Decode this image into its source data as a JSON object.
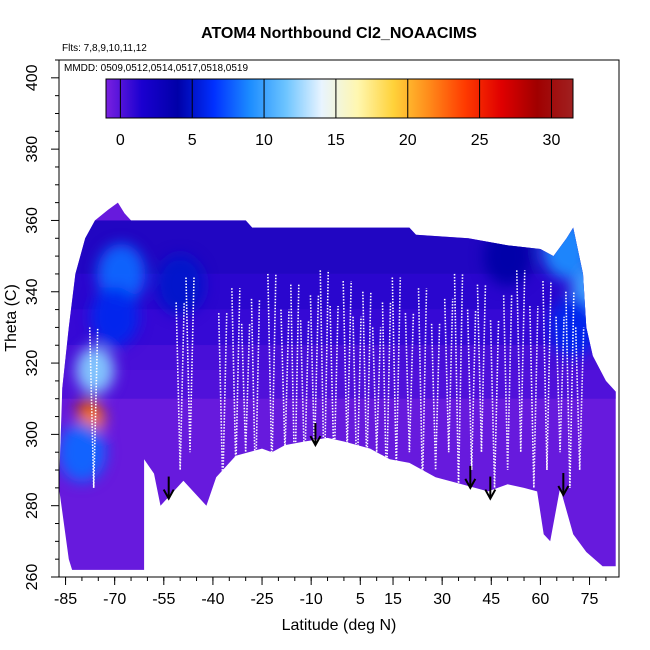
{
  "chart_data": {
    "type": "heatmap",
    "title": "ATOM4 Northbound Cl2_NOAACIMS",
    "annotations": [
      "Flts: 7,8,9,10,11,12",
      "MMDD: 0509,0512,0514,0517,0518,0519"
    ],
    "xlabel": "Latitude (deg N)",
    "ylabel": "Theta (C)",
    "xlim": [
      -87,
      84
    ],
    "ylim": [
      260,
      405
    ],
    "x_ticks": [
      -85,
      -70,
      -55,
      -40,
      -25,
      -10,
      5,
      15,
      30,
      45,
      60,
      75
    ],
    "y_ticks": [
      260,
      280,
      300,
      320,
      340,
      360,
      380,
      400
    ],
    "grid": false,
    "colorbar": {
      "range": [
        -1,
        31.5
      ],
      "ticks": [
        0,
        5,
        10,
        15,
        20,
        25,
        30
      ],
      "placement": "inside top",
      "colors": [
        "#7a20e0",
        "#1a00d0",
        "#0000a8",
        "#0030ff",
        "#1c8cff",
        "#6cc4ff",
        "#e8f4ff",
        "#fff7b0",
        "#ffd23a",
        "#ff8a1a",
        "#ff3a00",
        "#e00000",
        "#a00000",
        "#a02020"
      ]
    },
    "data_mask": {
      "top_theta": [
        [
          -87,
          285
        ],
        [
          -86,
          313
        ],
        [
          -84,
          330
        ],
        [
          -82,
          345
        ],
        [
          -79,
          355
        ],
        [
          -76,
          360
        ],
        [
          -72,
          363
        ],
        [
          -69,
          365
        ],
        [
          -67,
          362
        ],
        [
          -65,
          360
        ],
        [
          -30,
          360
        ],
        [
          -28,
          358
        ],
        [
          -10,
          358
        ],
        [
          20,
          358
        ],
        [
          22,
          356
        ],
        [
          38,
          355
        ],
        [
          50,
          353
        ],
        [
          60,
          352
        ],
        [
          64,
          350
        ],
        [
          68,
          355
        ],
        [
          70,
          358
        ],
        [
          73,
          345
        ],
        [
          74,
          330
        ],
        [
          76,
          322
        ],
        [
          80,
          315
        ],
        [
          83,
          312
        ]
      ],
      "bottom_theta": [
        [
          -87,
          285
        ],
        [
          -84,
          265
        ],
        [
          -83,
          262
        ],
        [
          -61,
          262
        ],
        [
          -61,
          293
        ],
        [
          -58,
          289
        ],
        [
          -56,
          280
        ],
        [
          -53,
          283
        ],
        [
          -49,
          287
        ],
        [
          -45,
          283
        ],
        [
          -42,
          280
        ],
        [
          -39,
          288
        ],
        [
          -33,
          294
        ],
        [
          -25,
          296
        ],
        [
          -22,
          295
        ],
        [
          -18,
          297
        ],
        [
          -12,
          298
        ],
        [
          -5,
          299
        ],
        [
          0,
          298
        ],
        [
          8,
          296
        ],
        [
          14,
          293
        ],
        [
          20,
          292
        ],
        [
          28,
          288
        ],
        [
          36,
          286
        ],
        [
          44,
          284
        ],
        [
          50,
          286
        ],
        [
          55,
          285
        ],
        [
          59,
          284
        ],
        [
          61,
          272
        ],
        [
          63,
          270
        ],
        [
          66,
          285
        ],
        [
          70,
          272
        ],
        [
          74,
          267
        ],
        [
          79,
          263
        ],
        [
          83,
          263
        ]
      ]
    },
    "field_blobs": [
      {
        "lat": -78,
        "theta": 306,
        "value": 30
      },
      {
        "lat": -77,
        "theta": 304,
        "value": 22
      },
      {
        "lat": -76,
        "theta": 318,
        "value": 12
      },
      {
        "lat": -80,
        "theta": 295,
        "value": 8
      },
      {
        "lat": -68,
        "theta": 345,
        "value": 8
      },
      {
        "lat": -70,
        "theta": 333,
        "value": 6
      },
      {
        "lat": -50,
        "theta": 342,
        "value": 5
      },
      {
        "lat": 50,
        "theta": 350,
        "value": 4
      },
      {
        "lat": 75,
        "theta": 340,
        "value": 10
      },
      {
        "lat": 70,
        "theta": 330,
        "value": 6
      },
      {
        "lat": 68,
        "theta": 352,
        "value": 9
      }
    ],
    "flight_track_lat": [
      -76.4,
      -50,
      -47,
      -37,
      -33,
      -30,
      -27,
      -22,
      -18,
      -15,
      -12,
      -9,
      -6,
      -3,
      1,
      4,
      7,
      10,
      13,
      16,
      20,
      24,
      28,
      32,
      35,
      39,
      42,
      46,
      50,
      54,
      58,
      62,
      66,
      69,
      72
    ],
    "arrows": [
      {
        "lat": -53.5,
        "theta": 282
      },
      {
        "lat": -8.7,
        "theta": 297
      },
      {
        "lat": 38.6,
        "theta": 285
      },
      {
        "lat": 44.7,
        "theta": 282
      },
      {
        "lat": 67,
        "theta": 283
      }
    ]
  }
}
